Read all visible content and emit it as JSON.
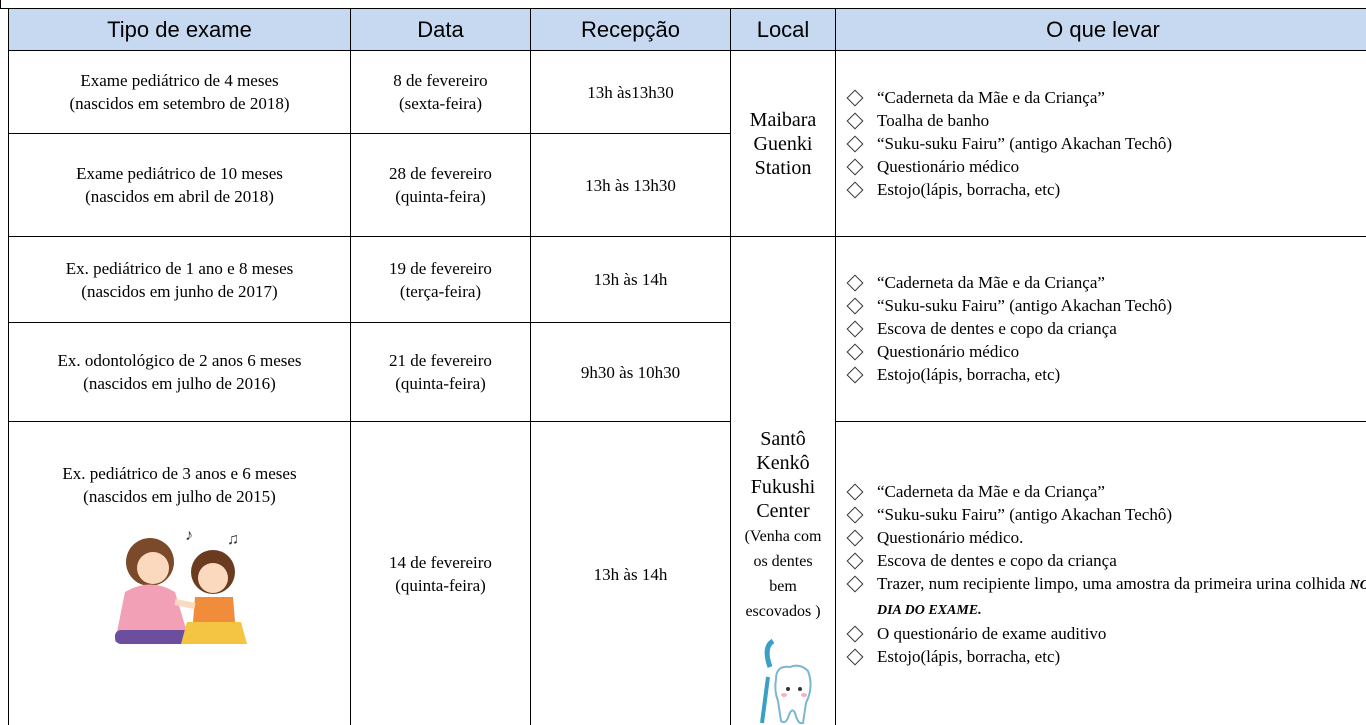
{
  "table": {
    "headers": [
      "Tipo de exame",
      "Data",
      "Recepção",
      "Local",
      "O que levar"
    ],
    "rows": [
      {
        "exam": [
          "Exame pediátrico de 4 meses",
          "(nascidos em setembro de 2018)"
        ],
        "date": [
          "8 de fevereiro",
          "(sexta-feira)"
        ],
        "reception": "13h às13h30"
      },
      {
        "exam": [
          "Exame pediátrico de 10 meses",
          "(nascidos em abril de 2018)"
        ],
        "date": [
          "28 de fevereiro",
          "(quinta-feira)"
        ],
        "reception": "13h às 13h30"
      },
      {
        "exam": [
          "Ex. pediátrico de 1 ano e 8 meses",
          "(nascidos em junho de 2017)"
        ],
        "date": [
          "19 de fevereiro",
          "(terça-feira)"
        ],
        "reception": "13h às 14h"
      },
      {
        "exam": [
          "Ex. odontológico de 2 anos 6 meses",
          "(nascidos em julho de 2016)"
        ],
        "date": [
          "21 de fevereiro",
          "(quinta-feira)"
        ],
        "reception": "9h30 às 10h30"
      },
      {
        "exam": [
          "Ex. pediátrico de 3 anos e 6 meses",
          "(nascidos em julho de 2015)"
        ],
        "date": [
          "14 de fevereiro",
          "(quinta-feira)"
        ],
        "reception": "13h às 14h"
      }
    ],
    "locations": [
      {
        "name": [
          "Maibara",
          "Guenki",
          "Station"
        ]
      },
      {
        "name": [
          "Santô",
          "Kenkô",
          "Fukushi",
          "Center"
        ],
        "note": [
          "(Venha com",
          "os dentes",
          "bem",
          "escovados )"
        ]
      }
    ],
    "items": [
      [
        "“Caderneta da Mãe e da Criança”",
        "Toalha de banho",
        "“Suku-suku Fairu” (antigo Akachan Techô)",
        "Questionário médico",
        "Estojo(lápis, borracha, etc)"
      ],
      [
        "“Caderneta da Mãe e da Criança”",
        "“Suku-suku Fairu” (antigo Akachan Techô)",
        "Escova de dentes e copo da criança",
        "Questionário médico",
        "Estojo(lápis, borracha, etc)"
      ],
      [
        "“Caderneta da Mãe e da Criança”",
        "“Suku-suku Fairu” (antigo Akachan Techô)",
        "Questionário médico.",
        "Escova de dentes e copo da criança",
        {
          "text": "Trazer, num recipiente limpo, uma amostra da primeira urina colhida",
          "emphasis": "NO DIA DO EXAME."
        },
        "O questionário de exame auditivo",
        "Estojo(lápis, borracha, etc)"
      ]
    ]
  }
}
